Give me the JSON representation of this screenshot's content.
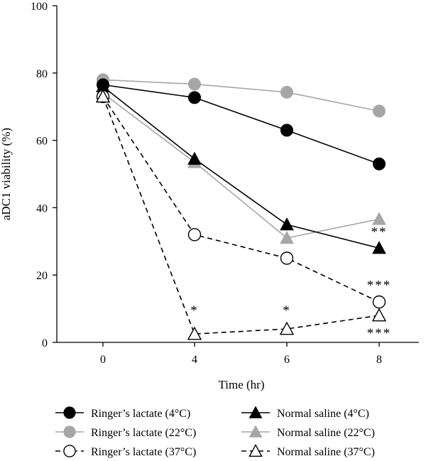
{
  "chart_data": {
    "type": "line",
    "xlabel": "Time (hr)",
    "ylabel": "aDC1 viability (%)",
    "categories": [
      "0",
      "4",
      "6",
      "8"
    ],
    "x": [
      0,
      4,
      6,
      8
    ],
    "ylim": [
      0,
      100
    ],
    "yticks": [
      0,
      20,
      40,
      60,
      80,
      100
    ],
    "grid": false,
    "legend_position": "bottom",
    "series": [
      {
        "name": "Ringer’s lactate (4°C)",
        "marker": "circle",
        "fill": "filled",
        "color": "#000000",
        "dashed": false,
        "values": [
          76.5,
          72.7,
          63,
          53
        ]
      },
      {
        "name": "Ringer’s lactate (22°C)",
        "marker": "circle",
        "fill": "filled",
        "color": "#a6a6a6",
        "dashed": false,
        "values": [
          78,
          76.7,
          74.3,
          68.7
        ]
      },
      {
        "name": "Ringer’s lactate (37°C)",
        "marker": "circle",
        "fill": "open",
        "color": "#000000",
        "dashed": true,
        "values": [
          73,
          32,
          25,
          12
        ]
      },
      {
        "name": "Normal saline (4°C)",
        "marker": "triangle",
        "fill": "filled",
        "color": "#000000",
        "dashed": false,
        "values": [
          76,
          54.5,
          35,
          28
        ]
      },
      {
        "name": "Normal saline (22°C)",
        "marker": "triangle",
        "fill": "filled",
        "color": "#a6a6a6",
        "dashed": false,
        "values": [
          74,
          53.5,
          31,
          36.6
        ]
      },
      {
        "name": "Normal saline (37°C)",
        "marker": "triangle",
        "fill": "open",
        "color": "#000000",
        "dashed": true,
        "values": [
          73,
          2.5,
          4,
          8
        ]
      }
    ],
    "annotations": [
      {
        "text": "**",
        "x": 8,
        "y": 31.5
      },
      {
        "text": "***",
        "x": 8,
        "y": 15.7
      },
      {
        "text": "***",
        "x": 8,
        "y": 1.5
      },
      {
        "text": "*",
        "x": 4,
        "y": 8.2
      },
      {
        "text": "*",
        "x": 6,
        "y": 8.2
      }
    ]
  }
}
